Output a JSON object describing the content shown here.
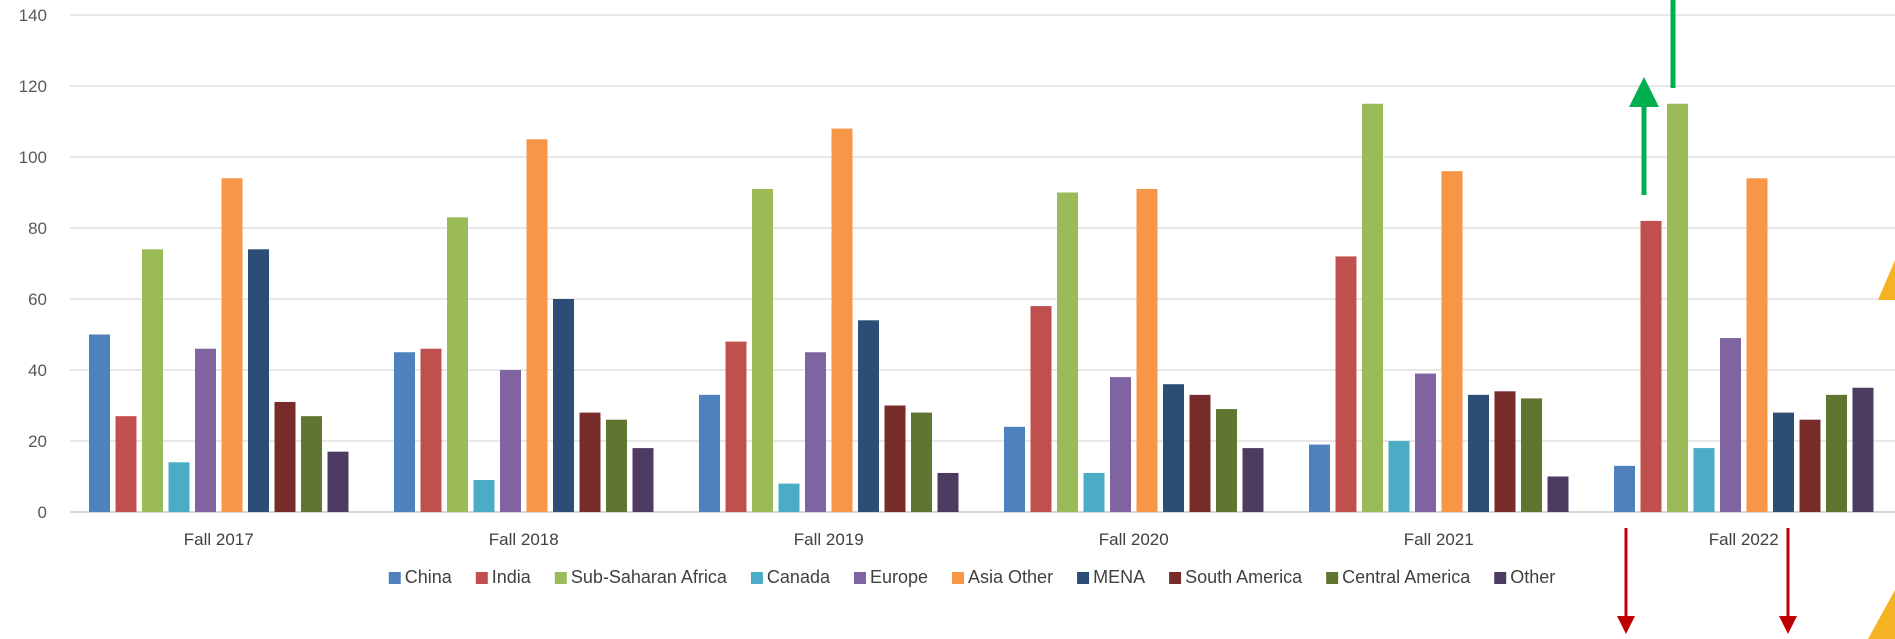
{
  "chart_data": {
    "type": "bar",
    "title": "",
    "xlabel": "",
    "ylabel": "",
    "ylim": [
      0,
      140
    ],
    "yticks": [
      0,
      20,
      40,
      60,
      80,
      100,
      120,
      140
    ],
    "grid": true,
    "legend_position": "bottom",
    "categories": [
      "Fall 2017",
      "Fall 2018",
      "Fall 2019",
      "Fall 2020",
      "Fall 2021",
      "Fall 2022"
    ],
    "series": [
      {
        "name": "China",
        "color": "#4f81bd",
        "values": [
          50,
          45,
          33,
          24,
          19,
          13
        ]
      },
      {
        "name": "India",
        "color": "#c0504d",
        "values": [
          27,
          46,
          48,
          58,
          72,
          82
        ]
      },
      {
        "name": "Sub-Saharan Africa",
        "color": "#9bbb59",
        "values": [
          74,
          83,
          91,
          90,
          115,
          115
        ]
      },
      {
        "name": "Canada",
        "color": "#4bacc6",
        "values": [
          14,
          9,
          8,
          11,
          20,
          18
        ]
      },
      {
        "name": "Europe",
        "color": "#8064a2",
        "values": [
          46,
          40,
          45,
          38,
          39,
          49
        ]
      },
      {
        "name": "Asia Other",
        "color": "#f79646",
        "values": [
          94,
          105,
          108,
          91,
          96,
          94
        ]
      },
      {
        "name": "MENA",
        "color": "#2c4d75",
        "values": [
          74,
          60,
          54,
          36,
          33,
          28
        ]
      },
      {
        "name": "South America",
        "color": "#772c2a",
        "values": [
          31,
          28,
          30,
          33,
          34,
          26
        ]
      },
      {
        "name": "Central America",
        "color": "#5f7530",
        "values": [
          27,
          26,
          28,
          29,
          32,
          33
        ]
      },
      {
        "name": "Other",
        "color": "#4d3b62",
        "values": [
          17,
          18,
          11,
          18,
          10,
          35
        ]
      }
    ]
  },
  "annotations": [
    {
      "name": "up-arrow-india-2022",
      "direction": "up",
      "color": "#00b050"
    },
    {
      "name": "up-arrow-ssa-2022",
      "direction": "up",
      "color": "#00b050"
    },
    {
      "name": "down-arrow-china-2022",
      "direction": "down",
      "color": "#c00000"
    },
    {
      "name": "down-arrow-mena-2022",
      "direction": "down",
      "color": "#c00000"
    }
  ],
  "decoration": {
    "corner_accent_color": "#f5b324"
  }
}
